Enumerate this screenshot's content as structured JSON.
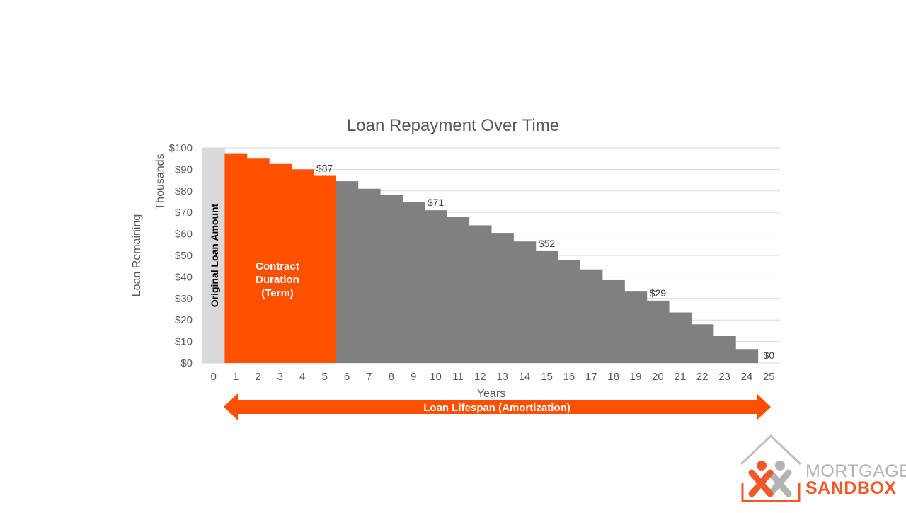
{
  "colors": {
    "original_bar": "#d9d9d9",
    "term_bars": "#ff5000",
    "amortization_bars": "#808080",
    "grid": "#d9d9d9",
    "arrow": "#ff5000",
    "logo_orange": "#f05a28",
    "logo_gray": "#b3b3b3"
  },
  "chart_data": {
    "type": "bar",
    "title": "Loan Repayment Over Time",
    "xlabel": "Years",
    "ylabel": "Loan Remaining",
    "y_unit_label": "Thousands",
    "ylim": [
      0,
      100
    ],
    "y_ticks": [
      "$0",
      "$10",
      "$20",
      "$30",
      "$40",
      "$50",
      "$60",
      "$70",
      "$80",
      "$90",
      "$100"
    ],
    "categories": [
      "0",
      "1",
      "2",
      "3",
      "4",
      "5",
      "6",
      "7",
      "8",
      "9",
      "10",
      "11",
      "12",
      "13",
      "14",
      "15",
      "16",
      "17",
      "18",
      "19",
      "20",
      "21",
      "22",
      "23",
      "24",
      "25"
    ],
    "values": [
      100,
      97.5,
      95,
      92.5,
      90,
      87,
      84.5,
      81,
      78,
      75,
      71,
      68,
      64,
      60.5,
      56.5,
      52,
      48,
      43.5,
      38.5,
      33.5,
      29,
      23.5,
      18,
      12.5,
      6.5,
      0
    ],
    "data_labels": [
      {
        "x": "5",
        "text": "$87"
      },
      {
        "x": "10",
        "text": "$71"
      },
      {
        "x": "15",
        "text": "$52"
      },
      {
        "x": "20",
        "text": "$29"
      },
      {
        "x": "25",
        "text": "$0"
      }
    ],
    "grid": true,
    "legend": "none",
    "annotations": {
      "original_loan": "Original Loan Amount",
      "term": [
        "Contract",
        "Duration",
        "(Term)"
      ],
      "amortization": "Loan Lifespan (Amortization)"
    }
  },
  "logo": {
    "line1": "MORTGAGE",
    "line2": "SANDBOX"
  }
}
